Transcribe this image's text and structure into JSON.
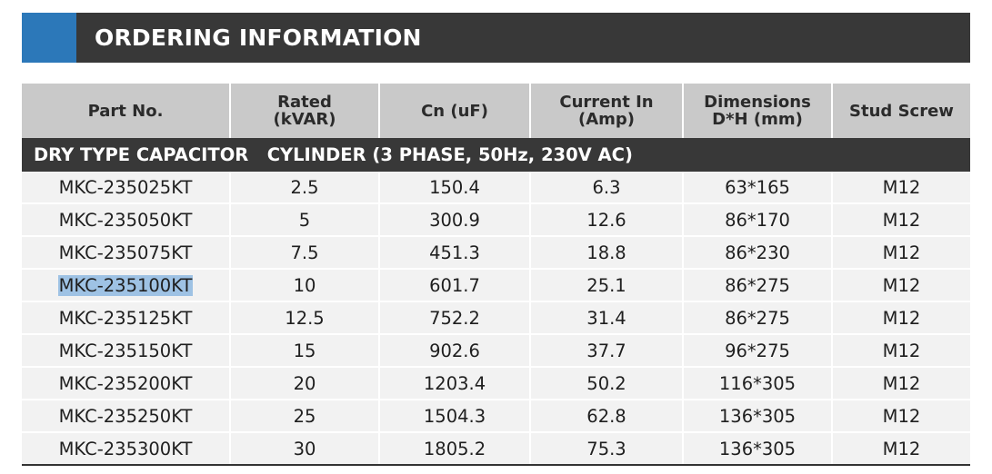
{
  "banner": {
    "title": "ORDERING INFORMATION",
    "accent_color": "#2c78b9",
    "bar_color": "#383838"
  },
  "table": {
    "headers": [
      [
        "Part No."
      ],
      [
        "Rated",
        "(kVAR)"
      ],
      [
        "Cn (uF)"
      ],
      [
        "Current In",
        "(Amp)"
      ],
      [
        "Dimensions",
        "D*H (mm)"
      ],
      [
        "Stud Screw"
      ]
    ],
    "section_label": "DRY TYPE CAPACITOR   CYLINDER (3 PHASE, 50Hz, 230V AC)",
    "rows": [
      [
        "MKC-235025KT",
        "2.5",
        "150.4",
        "6.3",
        "63*165",
        "M12"
      ],
      [
        "MKC-235050KT",
        "5",
        "300.9",
        "12.6",
        "86*170",
        "M12"
      ],
      [
        "MKC-235075KT",
        "7.5",
        "451.3",
        "18.8",
        "86*230",
        "M12"
      ],
      [
        "MKC-235100KT",
        "10",
        "601.7",
        "25.1",
        "86*275",
        "M12"
      ],
      [
        "MKC-235125KT",
        "12.5",
        "752.2",
        "31.4",
        "86*275",
        "M12"
      ],
      [
        "MKC-235150KT",
        "15",
        "902.6",
        "37.7",
        "96*275",
        "M12"
      ],
      [
        "MKC-235200KT",
        "20",
        "1203.4",
        "50.2",
        "116*305",
        "M12"
      ],
      [
        "MKC-235250KT",
        "25",
        "1504.3",
        "62.8",
        "136*305",
        "M12"
      ],
      [
        "MKC-235300KT",
        "30",
        "1805.2",
        "75.3",
        "136*305",
        "M12"
      ]
    ],
    "selected_row": 3,
    "selection_color": "#9ec2e4"
  }
}
